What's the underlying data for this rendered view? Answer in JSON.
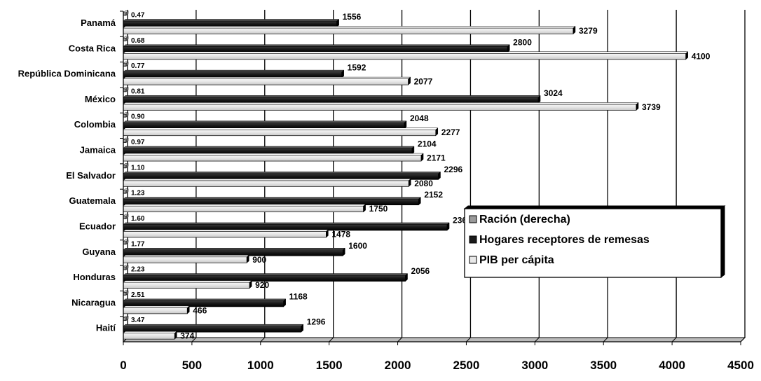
{
  "chart_data": {
    "type": "bar",
    "orientation": "horizontal",
    "categories": [
      "Panamá",
      "Costa Rica",
      "República Dominicana",
      "México",
      "Colombia",
      "Jamaica",
      "El Salvador",
      "Guatemala",
      "Ecuador",
      "Guyana",
      "Honduras",
      "Nicaragua",
      "Haití"
    ],
    "series": [
      {
        "name": "Ración (derecha)",
        "color": "#9a9a9a",
        "values": [
          0.47,
          0.68,
          0.77,
          0.81,
          0.9,
          0.97,
          1.1,
          1.23,
          1.6,
          1.77,
          2.23,
          2.51,
          3.47
        ],
        "labels": [
          "0.47",
          "0.68",
          "0.77",
          "0.81",
          "0.90",
          "0.97",
          "1.10",
          "1.23",
          "1.60",
          "1.77",
          "2.23",
          "2.51",
          "3.47"
        ]
      },
      {
        "name": "Hogares receptores de remesas",
        "color": "#1a1a1a",
        "values": [
          1556,
          2800,
          1592,
          3024,
          2048,
          2104,
          2296,
          2152,
          2360,
          1600,
          2056,
          1168,
          1296
        ]
      },
      {
        "name": "PIB per cápita",
        "color": "#e8e8e8",
        "values": [
          3279,
          4100,
          2077,
          3739,
          2277,
          2171,
          2080,
          1750,
          1478,
          900,
          920,
          466,
          374
        ]
      }
    ],
    "xlim": [
      0,
      4500
    ],
    "xticks": [
      "0",
      "500",
      "1000",
      "1500",
      "2000",
      "2500",
      "3000",
      "3500",
      "4000",
      "4500"
    ],
    "title": "",
    "xlabel": "",
    "ylabel": "",
    "grid": "vertical",
    "legend_position": "right"
  }
}
